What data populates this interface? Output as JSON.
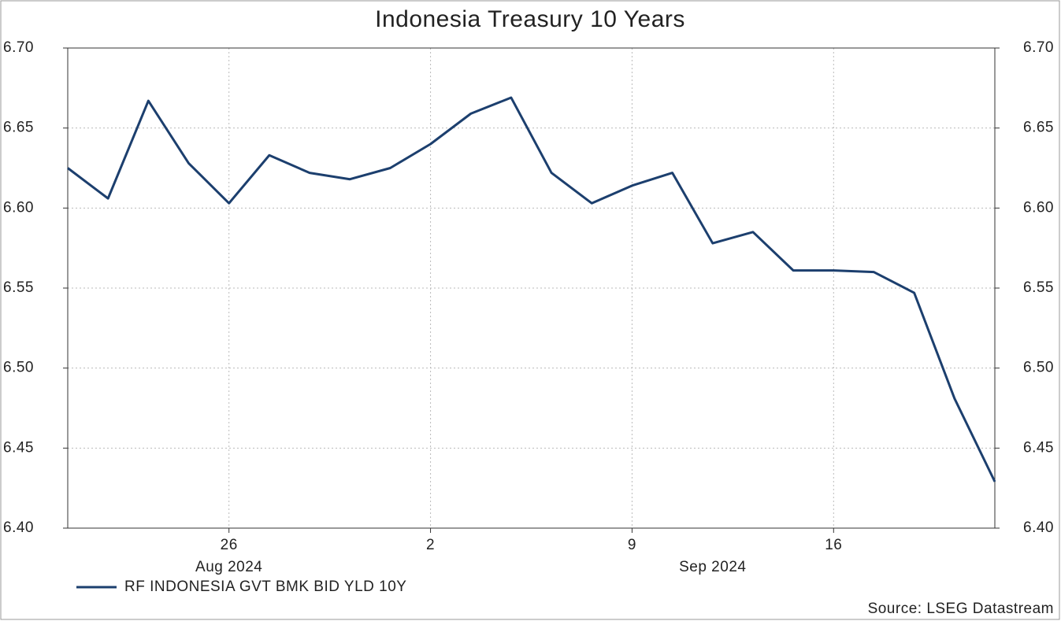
{
  "chart_data": {
    "type": "line",
    "title": "Indonesia Treasury 10 Years",
    "x": [
      "2024-08-20",
      "2024-08-21",
      "2024-08-22",
      "2024-08-23",
      "2024-08-26",
      "2024-08-27",
      "2024-08-28",
      "2024-08-29",
      "2024-08-30",
      "2024-09-02",
      "2024-09-03",
      "2024-09-04",
      "2024-09-05",
      "2024-09-06",
      "2024-09-09",
      "2024-09-10",
      "2024-09-11",
      "2024-09-12",
      "2024-09-13",
      "2024-09-16",
      "2024-09-17",
      "2024-09-18",
      "2024-09-19",
      "2024-09-20"
    ],
    "series": [
      {
        "name": "RF INDONESIA GVT BMK BID YLD 10Y",
        "color": "#1c3f6e",
        "values": [
          6.625,
          6.606,
          6.667,
          6.628,
          6.603,
          6.633,
          6.622,
          6.618,
          6.625,
          6.64,
          6.659,
          6.669,
          6.622,
          6.603,
          6.614,
          6.622,
          6.578,
          6.585,
          6.561,
          6.561,
          6.56,
          6.547,
          6.481,
          6.429
        ]
      }
    ],
    "xticks": [
      {
        "value": "2024-08-26",
        "label": "26"
      },
      {
        "value": "2024-09-02",
        "label": "2"
      },
      {
        "value": "2024-09-09",
        "label": "9"
      },
      {
        "value": "2024-09-16",
        "label": "16"
      }
    ],
    "month_labels": [
      {
        "value": "2024-08",
        "label": "Aug 2024"
      },
      {
        "value": "2024-09",
        "label": "Sep 2024"
      }
    ],
    "ylim": [
      6.4,
      6.7
    ],
    "yticks": [
      {
        "value": 6.4,
        "label": "6.40"
      },
      {
        "value": 6.45,
        "label": "6.45"
      },
      {
        "value": 6.5,
        "label": "6.50"
      },
      {
        "value": 6.55,
        "label": "6.55"
      },
      {
        "value": 6.6,
        "label": "6.60"
      },
      {
        "value": 6.65,
        "label": "6.65"
      },
      {
        "value": 6.7,
        "label": "6.70"
      }
    ],
    "grid": true,
    "source": "Source: LSEG Datastream"
  }
}
